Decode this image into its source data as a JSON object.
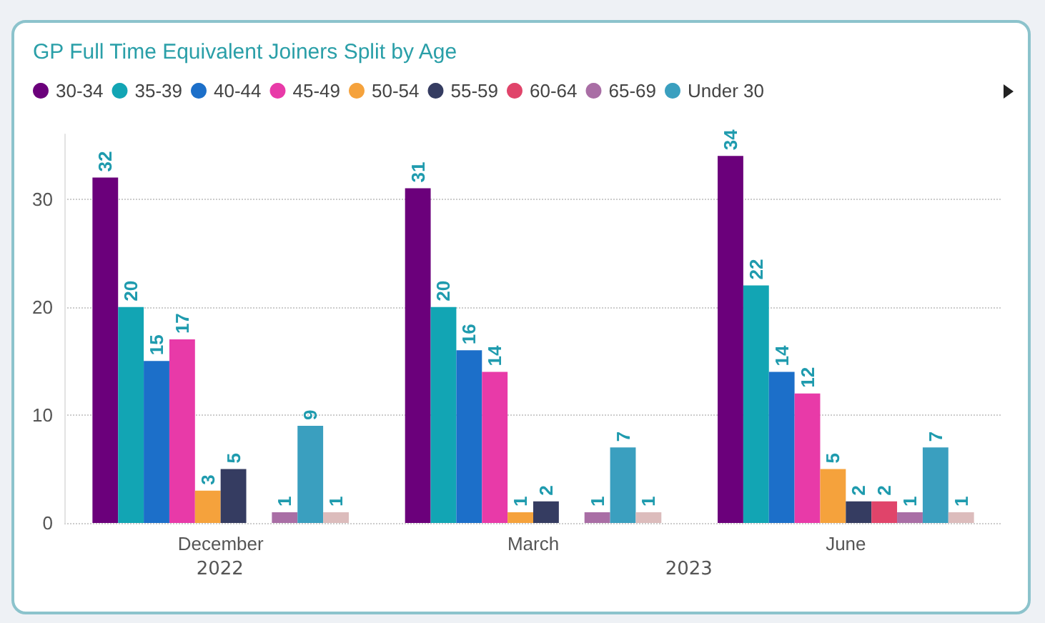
{
  "chart_data": {
    "type": "bar",
    "title": "GP Full Time Equivalent Joiners Split by Age",
    "categories": [
      "December",
      "March",
      "June"
    ],
    "series": [
      {
        "name": "30-34",
        "color": "#6b007b",
        "values": [
          32,
          31,
          34
        ]
      },
      {
        "name": "35-39",
        "color": "#12a5b4",
        "values": [
          20,
          20,
          22
        ]
      },
      {
        "name": "40-44",
        "color": "#1c6fc9",
        "values": [
          15,
          16,
          14
        ]
      },
      {
        "name": "45-49",
        "color": "#e83aa8",
        "values": [
          17,
          14,
          12
        ]
      },
      {
        "name": "50-54",
        "color": "#f5a23c",
        "values": [
          3,
          1,
          5
        ]
      },
      {
        "name": "55-59",
        "color": "#353c61",
        "values": [
          5,
          2,
          2
        ]
      },
      {
        "name": "60-64",
        "color": "#e0446a",
        "values": [
          null,
          null,
          2
        ]
      },
      {
        "name": "65-69",
        "color": "#a96ea5",
        "values": [
          1,
          1,
          1
        ]
      },
      {
        "name": "Under 30",
        "color": "#3a9fbf",
        "values": [
          9,
          7,
          7
        ]
      },
      {
        "color": "#dcbcbc",
        "values": [
          1,
          1,
          1
        ]
      }
    ],
    "annotations": [
      "2022",
      "2023"
    ],
    "ylim": [
      0,
      36
    ],
    "yticks": [
      0,
      10,
      20,
      30
    ],
    "grid": "y",
    "legend": "top left",
    "data_labels": true
  }
}
